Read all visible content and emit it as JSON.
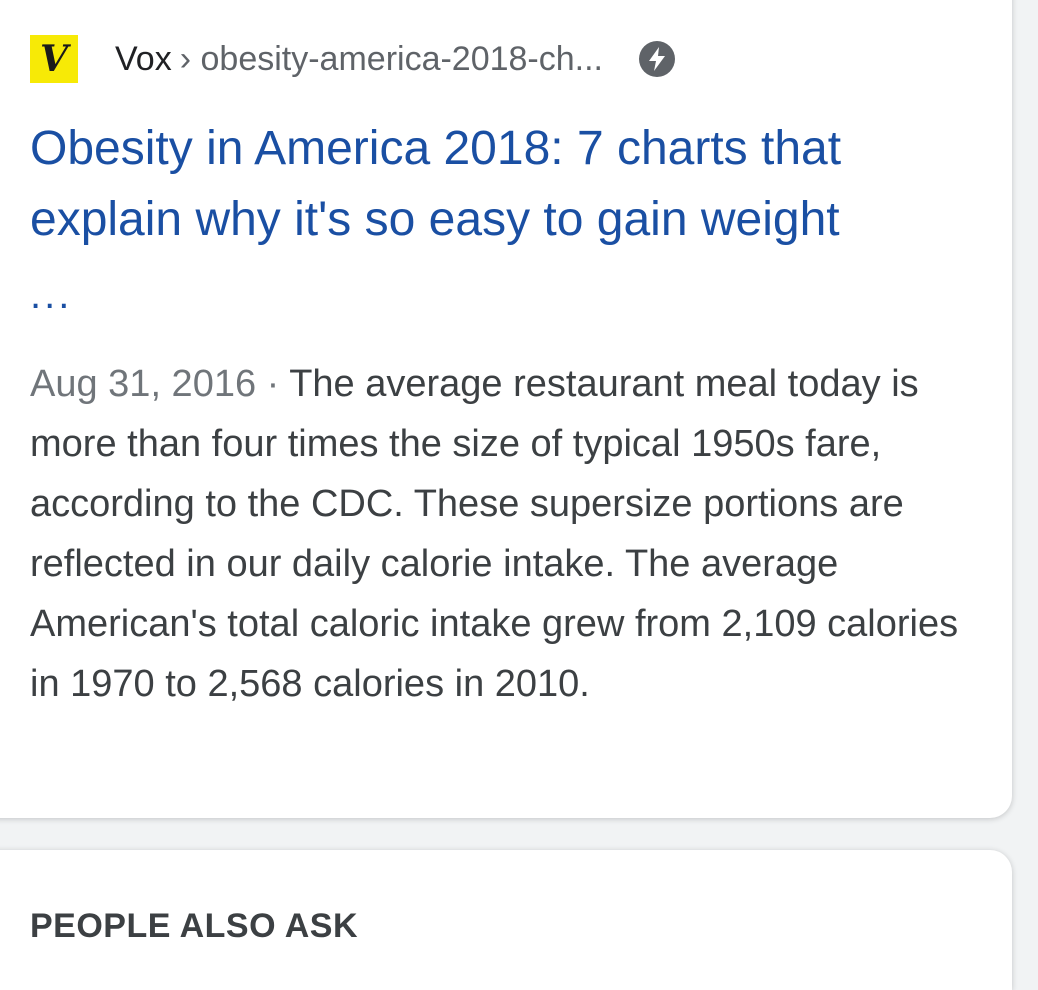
{
  "result": {
    "site_name": "Vox",
    "favicon_letter": "V",
    "favicon_color": "#f7ea06",
    "breadcrumb_separator": "›",
    "breadcrumb_path": "obesity-america-2018-ch...",
    "amp_icon": "bolt-icon",
    "title": "Obesity in America 2018: 7 charts that explain why it's so easy to gain weight",
    "title_ellipsis": "...",
    "date": "Aug 31, 2016",
    "date_separator": " · ",
    "snippet": "The average restaurant meal today is more than four times the size of typical 1950s fare, according to the CDC. These supersize portions are reflected in our daily calorie intake. The average American's total caloric intake grew from 2,109 calories in 1970 to 2,568 calories in 2010.",
    "link_color": "#1a4fa3"
  },
  "people_also_ask": {
    "heading": "PEOPLE ALSO ASK"
  }
}
